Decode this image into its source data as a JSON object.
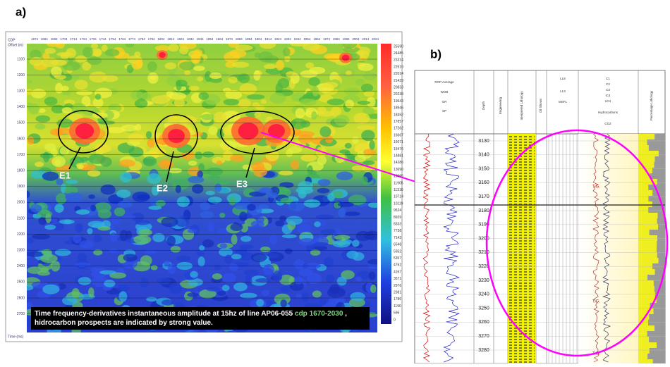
{
  "label_a": "a)",
  "label_b": "b)",
  "seismic": {
    "x_axis_label": "CDP",
    "offset_label": "Offset (m)",
    "y_axis_label": "Time (ms)",
    "cdp_ticks": [
      "1674",
      "1684",
      "1694",
      "1704",
      "1714",
      "1724",
      "1734",
      "1744",
      "1754",
      "1764",
      "1774",
      "1784",
      "1794",
      "1804",
      "1814",
      "1824",
      "1834",
      "1844",
      "1854",
      "1864",
      "1874",
      "1884",
      "1894",
      "1904",
      "1914",
      "1924",
      "1934",
      "1944",
      "1954",
      "1964",
      "1974",
      "1984",
      "1994",
      "2004",
      "2014",
      "2024"
    ],
    "time_ticks": [
      "1100",
      "1200",
      "1300",
      "1400",
      "1500",
      "1600",
      "1700",
      "1800",
      "1900",
      "2000",
      "2100",
      "2200",
      "2300",
      "2400",
      "2500",
      "2600",
      "2700"
    ],
    "colorbar_ticks": [
      "25590",
      "24485",
      "23314",
      "22519",
      "22024",
      "21429",
      "20833",
      "20238",
      "19643",
      "18946",
      "18452",
      "17857",
      "17262",
      "16667",
      "16071",
      "15476",
      "14881",
      "14286",
      "13690",
      "13095",
      "11905",
      "11310",
      "10714",
      "10119",
      "9524",
      "8929",
      "8333",
      "7738",
      "7143",
      "6548",
      "5952",
      "5357",
      "4762",
      "4167",
      "3571",
      "2976",
      "2381",
      "1786",
      "1190",
      "595",
      "0"
    ],
    "prospects": [
      "E1",
      "E2",
      "E3"
    ],
    "caption": {
      "part1": "Time frequency-derivatives instantaneous amplitude at 15hz of line AP06-055 ",
      "part2": "cdp 1670-2030",
      "part3": " , hidrocarbon prospects are indicated by strong value."
    }
  },
  "well_log": {
    "track_headers": [
      "ROP Average",
      "WOB",
      "GR",
      "SP",
      "Depth",
      "Engineering",
      "Interpreted Lithology",
      "Oil Shows",
      "LL8",
      "LL3",
      "MSFL",
      "C1",
      "C2",
      "C3",
      "iC4",
      "nC4",
      "Hydrocarbons",
      "CO2",
      "Percentage Lithology"
    ],
    "depths": [
      "3130",
      "3140",
      "3150",
      "3160",
      "3170",
      "3180",
      "3190",
      "3200",
      "3210",
      "3220",
      "3230",
      "3240",
      "3250",
      "3260",
      "3270",
      "3280"
    ],
    "annotations": [
      "T.G.",
      "T.G.",
      "T.G."
    ]
  }
}
